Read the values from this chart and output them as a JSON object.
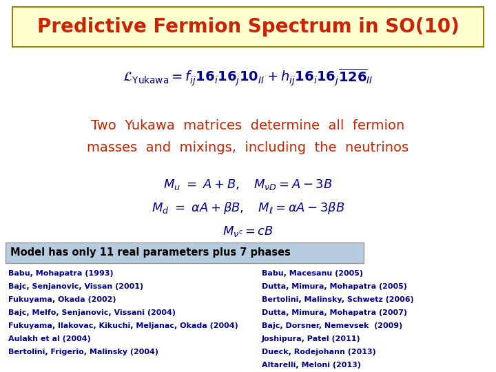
{
  "title": "Predictive Fermion Spectrum in SO(10)",
  "title_color": "#CC2200",
  "title_bg": "#FFFFD0",
  "title_border": "#8B8B00",
  "bg_color": "#FFFFFF",
  "lagrangian_color": "#00008B",
  "red_text_line1": "Two  Yukawa  matrices  determine  all  fermion",
  "red_text_line2": "masses  and  mixings,  including  the  neutrinos",
  "red_color": "#CC2200",
  "mass_color": "#00008B",
  "box_text": "Model has only 11 real parameters plus 7 phases",
  "box_bg": "#B8CCE0",
  "box_border": "#999999",
  "refs_left": [
    "Babu, Mohapatra (1993)",
    "Bajc, Senjanovic, Vissan (2001)",
    "Fukuyama, Okada (2002)",
    "Bajc, Melfo, Senjanovic, Vissani (2004)",
    "Fukuyama, Ilakovac, Kikuchi, Meljanac, Okada (2004)",
    "Aulakh et al (2004)",
    "Bertolini, Frigerio, Malinsky (2004)"
  ],
  "refs_right": [
    "Babu, Macesanu (2005)",
    "Dutta, Mimura, Mohapatra (2005)",
    "Bertolini, Malinsky, Schwetz (2006)",
    "Dutta, Mimura, Mohapatra (2007)",
    "Bajc, Dorsner, Nemevsek  (2009)",
    "Joshipura, Patel (2011)",
    "Dueck, Rodejohann (2013)",
    "Altarelli, Meloni (2013)"
  ],
  "refs_color": "#00008B"
}
